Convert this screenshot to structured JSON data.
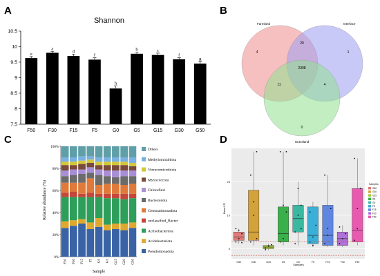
{
  "chart_data": [
    {
      "panel": "A",
      "type": "bar",
      "title": "Shannon",
      "categories": [
        "F50",
        "F30",
        "F15",
        "F5",
        "G0",
        "G5",
        "G15",
        "G30",
        "G50"
      ],
      "values": [
        9.63,
        9.8,
        9.7,
        9.58,
        8.65,
        9.77,
        9.73,
        9.59,
        9.45
      ],
      "errors": [
        0.05,
        0.05,
        0.06,
        0.06,
        0.08,
        0.05,
        0.06,
        0.05,
        0.07
      ],
      "letters": [
        "e",
        "a",
        "d",
        "f",
        "h",
        "b",
        "c",
        "f",
        "g"
      ],
      "ylim": [
        7.5,
        10.5
      ],
      "yticks": [
        "7.5",
        "8",
        "8.5",
        "9",
        "9.5",
        "10",
        "10.5"
      ],
      "bar_color": "#000000"
    },
    {
      "panel": "B",
      "type": "venn",
      "sets": [
        "Farmland",
        "Interface",
        "Grassland"
      ],
      "set_colors": [
        "#f08c8c",
        "#9c9cf2",
        "#8fe08f"
      ],
      "regions": {
        "farmland_only": "4",
        "interface_only": "1",
        "grassland_only": "0",
        "farmland_interface": "20",
        "farmland_grassland": "11",
        "interface_grassland": "4",
        "all_three": "2308"
      }
    },
    {
      "panel": "C",
      "type": "stacked_bar",
      "xlabel": "Sample",
      "ylabel": "Relative abundance (%)",
      "yticks": [
        "0%",
        "20%",
        "40%",
        "60%",
        "80%",
        "100%"
      ],
      "categories": [
        "F50",
        "F30",
        "F15",
        "F5",
        "G0",
        "G5",
        "G15",
        "G30",
        "G50"
      ],
      "series": [
        {
          "name": "Pseudomonadota",
          "color": "#3a63a6",
          "values": [
            26,
            28,
            30,
            25,
            27,
            24,
            25,
            24,
            26
          ]
        },
        {
          "name": "Acidobacteriota",
          "color": "#e0a82e",
          "values": [
            6,
            5,
            4,
            6,
            8,
            5,
            5,
            6,
            5
          ]
        },
        {
          "name": "Actinobacteriota",
          "color": "#2e9e5b",
          "values": [
            22,
            21,
            20,
            23,
            19,
            24,
            23,
            22,
            22
          ]
        },
        {
          "name": "unclassified_Bacter",
          "color": "#c4473a",
          "values": [
            4,
            5,
            3,
            4,
            3,
            4,
            4,
            5,
            4
          ]
        },
        {
          "name": "Gemmatimonadota",
          "color": "#e07a3a",
          "values": [
            9,
            8,
            10,
            13,
            8,
            9,
            9,
            8,
            9
          ]
        },
        {
          "name": "Bacteroidota",
          "color": "#6b6b6b",
          "values": [
            6,
            7,
            8,
            5,
            9,
            7,
            6,
            8,
            7
          ]
        },
        {
          "name": "Chloroflexi",
          "color": "#a88ed6",
          "values": [
            5,
            5,
            4,
            5,
            5,
            5,
            6,
            5,
            5
          ]
        },
        {
          "name": "Myxococcota",
          "color": "#7a4a3a",
          "values": [
            5,
            4,
            5,
            4,
            4,
            5,
            5,
            5,
            4
          ]
        },
        {
          "name": "Verrucomicrobiota",
          "color": "#d4c83a",
          "values": [
            3,
            3,
            3,
            3,
            3,
            3,
            3,
            3,
            3
          ]
        },
        {
          "name": "Methylomirabilota",
          "color": "#7ab0e0",
          "values": [
            4,
            4,
            4,
            3,
            4,
            4,
            4,
            4,
            5
          ]
        },
        {
          "name": "Others",
          "color": "#5f9fa8",
          "values": [
            10,
            10,
            9,
            9,
            10,
            10,
            10,
            10,
            10
          ]
        }
      ]
    },
    {
      "panel": "D",
      "type": "box",
      "xlabel": "Samples",
      "ylabel": "Beta-NTI",
      "ylim": [
        -3,
        30
      ],
      "yticks": [
        0,
        10,
        20
      ],
      "dashed_lines": [
        2,
        -2
      ],
      "legend_title": "Samples",
      "groups": [
        {
          "name": "G50",
          "color": "#e07a7a",
          "q1": 2.5,
          "median": 3.5,
          "q3": 5.0,
          "min": 1.5,
          "max": 6.0,
          "points": [
            2.0,
            3.0,
            4.5,
            6.0,
            5.5,
            1.8
          ]
        },
        {
          "name": "G30",
          "color": "#d4a23a",
          "q1": 2.5,
          "median": 5.0,
          "q3": 17.5,
          "min": 1.0,
          "max": 29.0,
          "points": [
            2.0,
            14.0,
            29.0,
            22.0,
            10.0,
            3.0
          ]
        },
        {
          "name": "G15",
          "color": "#a8c83a",
          "q1": 0.0,
          "median": 0.5,
          "q3": 1.0,
          "min": -0.5,
          "max": 1.5,
          "points": [
            0.2,
            0.8,
            1.2,
            -0.3
          ]
        },
        {
          "name": "G5",
          "color": "#3ab04a",
          "q1": 2.0,
          "median": 4.5,
          "q3": 12.5,
          "min": 1.0,
          "max": 29.0,
          "points": [
            2.0,
            13.0,
            29.0,
            29.0,
            3.0,
            11.0
          ]
        },
        {
          "name": "G0",
          "color": "#3ab8a0",
          "q1": 5.0,
          "median": 9.0,
          "q3": 13.0,
          "min": 1.0,
          "max": 20.0,
          "points": [
            5.0,
            10.0,
            13.0,
            1.5,
            18.0,
            6.0
          ]
        },
        {
          "name": "F5",
          "color": "#3ab0d8",
          "q1": 1.5,
          "median": 4.0,
          "q3": 12.5,
          "min": 0.5,
          "max": 14.0,
          "points": [
            2.0,
            3.5,
            7.0,
            11.0,
            1.0
          ]
        },
        {
          "name": "F15",
          "color": "#5f86e0",
          "q1": 1.0,
          "median": 4.0,
          "q3": 13.0,
          "min": 0.5,
          "max": 22.0,
          "points": [
            1.5,
            4.0,
            12.0,
            22.0,
            6.0
          ]
        },
        {
          "name": "F30",
          "color": "#b070d8",
          "q1": 1.0,
          "median": 3.0,
          "q3": 5.0,
          "min": 0.5,
          "max": 7.0,
          "points": [
            1.5,
            3.0,
            4.5,
            6.5
          ]
        },
        {
          "name": "F50",
          "color": "#e85ab0",
          "q1": 2.0,
          "median": 5.5,
          "q3": 18.0,
          "min": 1.0,
          "max": 27.0,
          "points": [
            2.5,
            6.0,
            18.0,
            27.0,
            12.0
          ]
        }
      ]
    }
  ]
}
